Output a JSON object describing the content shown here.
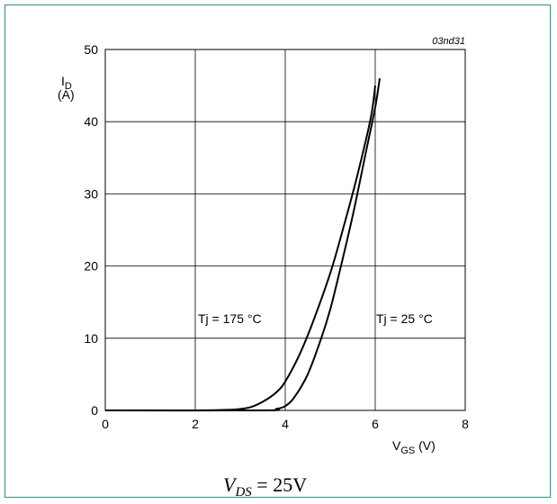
{
  "figure": {
    "code": "03nd31",
    "caption_main": "V",
    "caption_sub": "DS",
    "caption_rest": " = 25V"
  },
  "chart_data": {
    "type": "line",
    "ylabel_main": "I",
    "ylabel_sub": "D",
    "ylabel_unit": "(A)",
    "xlabel_main": "V",
    "xlabel_sub": "GS",
    "xlabel_unit": " (V)",
    "xlim": [
      0,
      8
    ],
    "ylim": [
      0,
      50
    ],
    "xticks": [
      0,
      2,
      4,
      6,
      8
    ],
    "yticks": [
      0,
      10,
      20,
      30,
      40,
      50
    ],
    "grid": true,
    "annotations": [
      {
        "text": "Tj = 175 °C",
        "x": 3.05,
        "y": 12.5
      },
      {
        "text": "Tj = 25 °C",
        "x": 6.0,
        "y": 12.5
      }
    ],
    "series": [
      {
        "x": [
          0,
          2.0,
          2.8,
          3.2,
          3.5,
          3.8,
          4.0,
          4.3,
          4.6,
          5.0,
          5.3,
          5.6,
          5.9,
          6.0
        ],
        "y": [
          0,
          0,
          0.1,
          0.4,
          1.2,
          2.5,
          4.0,
          7.5,
          12.0,
          19.0,
          25.5,
          32.5,
          40.5,
          45.0
        ]
      },
      {
        "x": [
          0,
          3.5,
          3.8,
          4.0,
          4.2,
          4.5,
          4.8,
          5.0,
          5.2,
          5.5,
          5.8,
          6.0,
          6.1
        ],
        "y": [
          0,
          0,
          0.2,
          0.6,
          1.8,
          5.0,
          10.0,
          14.0,
          19.0,
          27.0,
          36.0,
          42.0,
          46.0
        ]
      }
    ]
  }
}
